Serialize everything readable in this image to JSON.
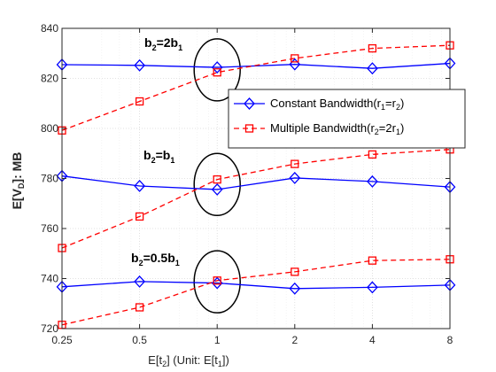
{
  "chart_data": {
    "type": "line",
    "categories": [
      "0.25",
      "0.5",
      "1",
      "2",
      "4",
      "8"
    ],
    "xlabel_parts": [
      "E[t",
      "2",
      "] (Unit: E[t",
      "1",
      "])"
    ],
    "ylabel_parts": [
      "E[V",
      "D",
      "]: MB"
    ],
    "ylim": [
      720,
      840
    ],
    "yticks": [
      "720",
      "740",
      "760",
      "780",
      "800",
      "820",
      "840"
    ],
    "grid": true,
    "legend_position": "right",
    "series": [
      {
        "name": "Constant Bandwidth(r1=r2)",
        "name_parts": [
          "Constant Bandwidth(r",
          "1",
          "=r",
          "2",
          ")"
        ],
        "color": "#0000ff",
        "marker": "diamond",
        "line_style": "solid",
        "groups": [
          {
            "label": "b2=2b1",
            "values": [
              825.5,
              825.2,
              824.4,
              825.6,
              824,
              826
            ]
          },
          {
            "label": "b2=b1",
            "values": [
              781,
              777,
              775.6,
              780.2,
              778.8,
              776.6
            ]
          },
          {
            "label": "b2=0.5b1",
            "values": [
              736.7,
              738.8,
              738.2,
              736,
              736.5,
              737.4
            ]
          }
        ]
      },
      {
        "name": "Multiple Bandwidth(r2=2r1)",
        "name_parts": [
          "Multiple Bandwidth(r",
          "2",
          "=2r",
          "1",
          ")"
        ],
        "color": "#ff0000",
        "marker": "square",
        "line_style": "dashed",
        "groups": [
          {
            "label": "b2=2b1",
            "values": [
              799.2,
              810.8,
              822.4,
              828,
              832,
              833.2
            ]
          },
          {
            "label": "b2=b1",
            "values": [
              752.2,
              764.8,
              779.6,
              785.8,
              789.6,
              791.6
            ]
          },
          {
            "label": "b2=0.5b1",
            "values": [
              721.5,
              728.5,
              739.2,
              742.7,
              747.2,
              747.7
            ]
          }
        ]
      }
    ],
    "annotations": [
      {
        "parts": [
          "b",
          "2",
          "=2b",
          "1"
        ],
        "text": "b2=2b1"
      },
      {
        "parts": [
          "b",
          "2",
          "=b",
          "1"
        ],
        "text": "b2=b1"
      },
      {
        "parts": [
          "b",
          "2",
          "=0.5b",
          "1"
        ],
        "text": "b2=0.5b1"
      }
    ]
  }
}
